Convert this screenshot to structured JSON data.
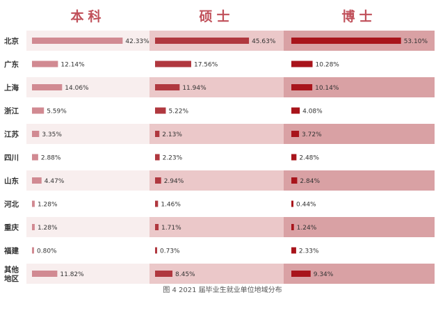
{
  "caption": "图 4   2021 届毕业生就业单位地域分布",
  "colors": {
    "text": "#333333",
    "header": "#c0505a",
    "series": [
      "#d18a92",
      "#b0383f",
      "#a8141b"
    ],
    "row_band": [
      "#f8eeee",
      "#ebc8c9",
      "#d9a1a4"
    ]
  },
  "chart_data": {
    "type": "bar",
    "orientation": "horizontal",
    "categories": [
      "北京",
      "广东",
      "上海",
      "浙江",
      "江苏",
      "四川",
      "山东",
      "河北",
      "重庆",
      "福建",
      "其他地区"
    ],
    "category_lines": [
      [
        "北京"
      ],
      [
        "广东"
      ],
      [
        "上海"
      ],
      [
        "浙江"
      ],
      [
        "江苏"
      ],
      [
        "四川"
      ],
      [
        "山东"
      ],
      [
        "河北"
      ],
      [
        "重庆"
      ],
      [
        "福建"
      ],
      [
        "其他",
        "地区"
      ]
    ],
    "series": [
      {
        "name": "本科",
        "values": [
          42.33,
          12.14,
          14.06,
          5.59,
          3.35,
          2.88,
          4.47,
          1.28,
          1.28,
          0.8,
          11.82
        ],
        "labels": [
          "42.33%",
          "12.14%",
          "14.06%",
          "5.59%",
          "3.35%",
          "2.88%",
          "4.47%",
          "1.28%",
          "1.28%",
          "0.80%",
          "11.82%"
        ]
      },
      {
        "name": "硕士",
        "values": [
          45.63,
          17.56,
          11.94,
          5.22,
          2.13,
          2.23,
          2.94,
          1.46,
          1.71,
          0.73,
          8.45
        ],
        "labels": [
          "45.63%",
          "17.56%",
          "11.94%",
          "5.22%",
          "2.13%",
          "2.23%",
          "2.94%",
          "1.46%",
          "1.71%",
          "0.73%",
          "8.45%"
        ]
      },
      {
        "name": "博士",
        "values": [
          53.1,
          10.28,
          10.14,
          4.08,
          3.72,
          2.48,
          2.84,
          0.44,
          1.24,
          2.33,
          9.34
        ],
        "labels": [
          "53.10%",
          "10.28%",
          "10.14%",
          "4.08%",
          "3.72%",
          "2.48%",
          "2.84%",
          "0.44%",
          "1.24%",
          "2.33%",
          "9.34%"
        ]
      }
    ],
    "banded_rows": [
      0,
      2,
      4,
      6,
      8,
      10
    ],
    "grid": false,
    "legend": "column headers at top",
    "xlabel": "",
    "ylabel": ""
  }
}
